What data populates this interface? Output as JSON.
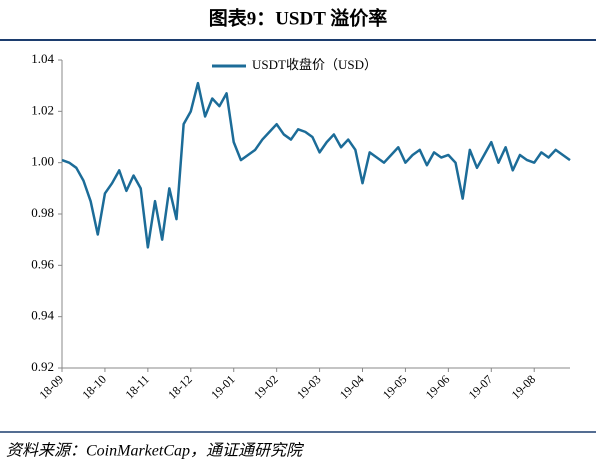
{
  "header": {
    "title": "图表9：USDT 溢价率"
  },
  "chart_data": {
    "type": "line",
    "categories": [
      "18-09",
      null,
      null,
      null,
      null,
      null,
      "18-10",
      null,
      null,
      null,
      null,
      null,
      "18-11",
      null,
      null,
      null,
      null,
      null,
      "18-12",
      null,
      null,
      null,
      null,
      null,
      "19-01",
      null,
      null,
      null,
      null,
      null,
      "19-02",
      null,
      null,
      null,
      null,
      null,
      "19-03",
      null,
      null,
      null,
      null,
      null,
      "19-04",
      null,
      null,
      null,
      null,
      null,
      "19-05",
      null,
      null,
      null,
      null,
      null,
      "19-06",
      null,
      null,
      null,
      null,
      null,
      "19-07",
      null,
      null,
      null,
      null,
      null,
      "19-08",
      null,
      null,
      null,
      null,
      null
    ],
    "series": [
      {
        "name": "USDT收盘价（USD）",
        "color": "#1c6c98",
        "values": [
          1.001,
          1.0,
          0.998,
          0.993,
          0.985,
          0.972,
          0.988,
          0.992,
          0.997,
          0.989,
          0.995,
          0.99,
          0.967,
          0.985,
          0.97,
          0.99,
          0.978,
          1.015,
          1.02,
          1.031,
          1.018,
          1.025,
          1.022,
          1.027,
          1.008,
          1.001,
          1.003,
          1.005,
          1.009,
          1.012,
          1.015,
          1.011,
          1.009,
          1.013,
          1.012,
          1.01,
          1.004,
          1.008,
          1.011,
          1.006,
          1.009,
          1.005,
          0.992,
          1.004,
          1.002,
          1.0,
          1.003,
          1.006,
          1.0,
          1.003,
          1.005,
          0.999,
          1.004,
          1.002,
          1.003,
          1.0,
          0.986,
          1.005,
          0.998,
          1.003,
          1.008,
          1.0,
          1.006,
          0.997,
          1.003,
          1.001,
          1.0,
          1.004,
          1.002,
          1.005,
          1.003,
          1.001
        ]
      }
    ],
    "ylim": [
      0.92,
      1.04
    ],
    "yticks": [
      0.92,
      0.94,
      0.96,
      0.98,
      {
        "value": 1,
        "label": "1.00"
      },
      1.02,
      1.04
    ]
  },
  "footer": {
    "source": "资料来源：CoinMarketCap，通证通研究院"
  }
}
